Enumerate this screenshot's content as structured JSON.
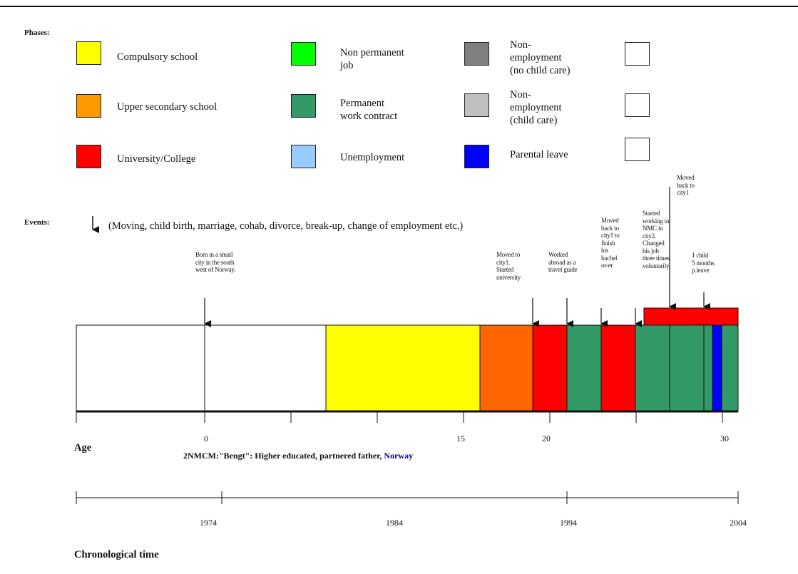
{
  "phases_heading": "Phases:",
  "events_heading": "Events:",
  "events_description": "(Moving, child birth, marriage, cohab, divorce, break-up, change of employment etc.)",
  "legend": [
    {
      "label": "Compulsory school",
      "color": "#ffff00"
    },
    {
      "label": "Upper secondary school",
      "color": "#ff9900"
    },
    {
      "label": "University/College",
      "color": "#ff0000"
    },
    {
      "label": "Non permanent\njob",
      "color": "#00ff00"
    },
    {
      "label": "Permanent\nwork contract",
      "color": "#339966"
    },
    {
      "label": "Unemployment",
      "color": "#99ccff"
    },
    {
      "label": "Non-\nemployment\n(no child care)",
      "color": "#808080"
    },
    {
      "label": "Non-\nemployment\n(child care)",
      "color": "#c0c0c0"
    },
    {
      "label": "Parental leave",
      "color": "#0000ff"
    },
    {
      "label": "",
      "color": "#ffffff"
    },
    {
      "label": "",
      "color": "#ffffff"
    },
    {
      "label": "",
      "color": "#ffffff"
    }
  ],
  "events": [
    {
      "text": "Born in a small\ncity in the south\nwest of Norway."
    },
    {
      "text": "Moved to\ncity1.\nStarted\nuniversity"
    },
    {
      "text": "Worked\nabroad as a\ntravel guide"
    },
    {
      "text": "Moved\nback to\ncity1 to\nfinish\nhis\nbachel\nor-er"
    },
    {
      "text": "Started\nworking in\nNMC in\ncity2.\nChanged\nhis job\nthree times\nvoluntarily."
    },
    {
      "text": "Moved\nback to\ncity1"
    },
    {
      "text": "1 child\n5 months\np.leave"
    }
  ],
  "timeline": {
    "segments": [
      {
        "phase": "Compulsory school",
        "color": "#ffff00"
      },
      {
        "phase": "Upper secondary school",
        "color": "#ff6600"
      },
      {
        "phase": "University/College",
        "color": "#ff0000"
      },
      {
        "phase": "Permanent work contract",
        "color": "#339966"
      },
      {
        "phase": "University/College",
        "color": "#ff0000"
      },
      {
        "phase": "Permanent work contract",
        "color": "#339966"
      },
      {
        "phase": "Permanent work contract",
        "color": "#339966"
      },
      {
        "phase": "Permanent work contract",
        "color": "#339966"
      },
      {
        "phase": "Parental leave",
        "color": "#0000ff"
      },
      {
        "phase": "Permanent work contract",
        "color": "#339966"
      }
    ],
    "overlay_bar": {
      "phase": "University/College",
      "color": "#ff0000"
    }
  },
  "age_axis": {
    "label": "Age",
    "ticks": [
      "0",
      "15",
      "20",
      "30"
    ]
  },
  "caption_prefix": "2NMCM:\"Bengt\": Higher educated, partnered father, ",
  "caption_suffix": "Norway",
  "chronological_axis": {
    "label": "Chronological time",
    "ticks": [
      "1974",
      "1984",
      "1994",
      "2004"
    ]
  }
}
